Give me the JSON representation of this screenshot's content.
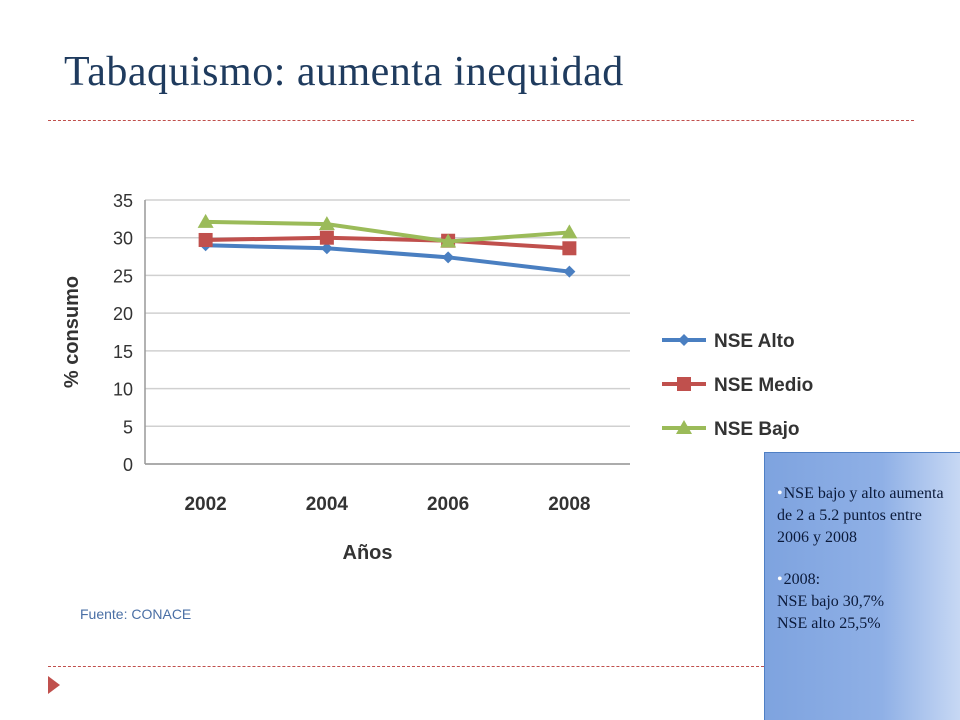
{
  "slide": {
    "title": "Tabaquismo: aumenta inequidad",
    "source": "Fuente: CONACE"
  },
  "note": {
    "paragraphs": [
      "NSE bajo y alto aumenta de 2  a 5.2 puntos entre  2006 y 2008",
      "2008:\nNSE bajo 30,7%\nNSE alto 25,5%"
    ]
  },
  "chart_data": {
    "type": "line",
    "categories": [
      "2002",
      "2004",
      "2006",
      "2008"
    ],
    "series": [
      {
        "name": "NSE Alto",
        "values": [
          29.0,
          28.6,
          27.4,
          25.5
        ],
        "color": "#4a7fc1",
        "marker": "diamond"
      },
      {
        "name": "NSE Medio",
        "values": [
          29.7,
          30.0,
          29.6,
          28.6
        ],
        "color": "#c0504d",
        "marker": "square"
      },
      {
        "name": "NSE Bajo",
        "values": [
          32.1,
          31.8,
          29.5,
          30.7
        ],
        "color": "#9bbb59",
        "marker": "triangle"
      }
    ],
    "xlabel": "Años",
    "ylabel": "% consumo",
    "ylim": [
      0,
      35
    ],
    "yticks": [
      0,
      5,
      10,
      15,
      20,
      25,
      30,
      35
    ],
    "grid": true,
    "legend": "right"
  }
}
